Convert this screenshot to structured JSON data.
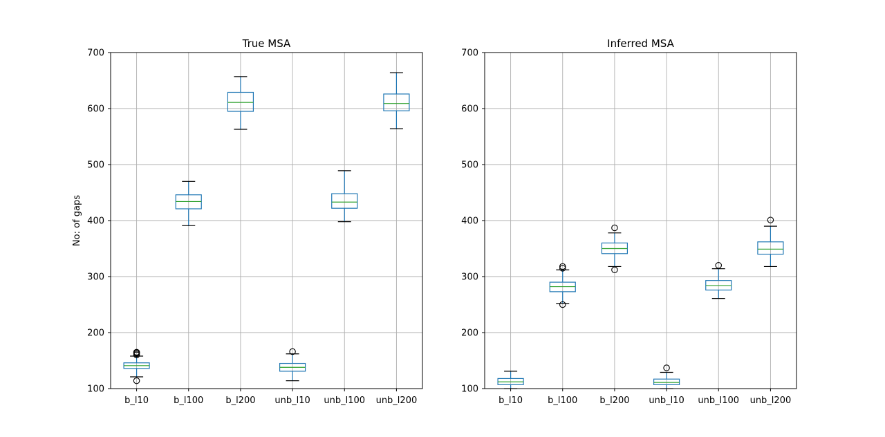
{
  "figure": {
    "ylabel": "No: of gaps"
  },
  "chart_data": [
    {
      "type": "box",
      "title": "True MSA",
      "xlabel": "",
      "ylabel": "No: of gaps",
      "ylim": [
        100,
        700
      ],
      "yticks": [
        100,
        200,
        300,
        400,
        500,
        600,
        700
      ],
      "grid": true,
      "categories": [
        "b_l10",
        "b_l100",
        "b_l200",
        "unb_l10",
        "unb_l100",
        "unb_l200"
      ],
      "boxes": [
        {
          "whisker_low": 121,
          "q1": 136,
          "median": 141,
          "q3": 146,
          "whisker_high": 158,
          "outliers": [
            114,
            160,
            162,
            164,
            165
          ]
        },
        {
          "whisker_low": 391,
          "q1": 421,
          "median": 434,
          "q3": 446,
          "whisker_high": 470,
          "outliers": []
        },
        {
          "whisker_low": 563,
          "q1": 595,
          "median": 611,
          "q3": 629,
          "whisker_high": 657,
          "outliers": []
        },
        {
          "whisker_low": 114,
          "q1": 131,
          "median": 138,
          "q3": 145,
          "whisker_high": 162,
          "outliers": [
            166
          ]
        },
        {
          "whisker_low": 398,
          "q1": 422,
          "median": 433,
          "q3": 448,
          "whisker_high": 489,
          "outliers": []
        },
        {
          "whisker_low": 564,
          "q1": 596,
          "median": 609,
          "q3": 626,
          "whisker_high": 664,
          "outliers": []
        }
      ]
    },
    {
      "type": "box",
      "title": "Inferred MSA",
      "xlabel": "",
      "ylabel": "",
      "ylim": [
        100,
        700
      ],
      "yticks": [
        100,
        200,
        300,
        400,
        500,
        600,
        700
      ],
      "grid": true,
      "categories": [
        "b_l10",
        "b_l100",
        "b_l200",
        "unb_l10",
        "unb_l100",
        "unb_l200"
      ],
      "boxes": [
        {
          "whisker_low": 100,
          "q1": 107,
          "median": 112,
          "q3": 118,
          "whisker_high": 131,
          "outliers": []
        },
        {
          "whisker_low": 252,
          "q1": 273,
          "median": 282,
          "q3": 290,
          "whisker_high": 312,
          "outliers": [
            250,
            315,
            318
          ]
        },
        {
          "whisker_low": 318,
          "q1": 341,
          "median": 350,
          "q3": 360,
          "whisker_high": 378,
          "outliers": [
            312,
            387
          ]
        },
        {
          "whisker_low": 100,
          "q1": 107,
          "median": 111,
          "q3": 117,
          "whisker_high": 129,
          "outliers": [
            137
          ]
        },
        {
          "whisker_low": 261,
          "q1": 276,
          "median": 284,
          "q3": 293,
          "whisker_high": 314,
          "outliers": [
            320
          ]
        },
        {
          "whisker_low": 318,
          "q1": 340,
          "median": 349,
          "q3": 362,
          "whisker_high": 390,
          "outliers": [
            401
          ]
        }
      ]
    }
  ],
  "colors": {
    "box": "#1f77b4",
    "median": "#2ca02c",
    "cap": "#000000",
    "grid": "#b0b0b0",
    "frame": "#000000",
    "outlier": "#000000"
  }
}
